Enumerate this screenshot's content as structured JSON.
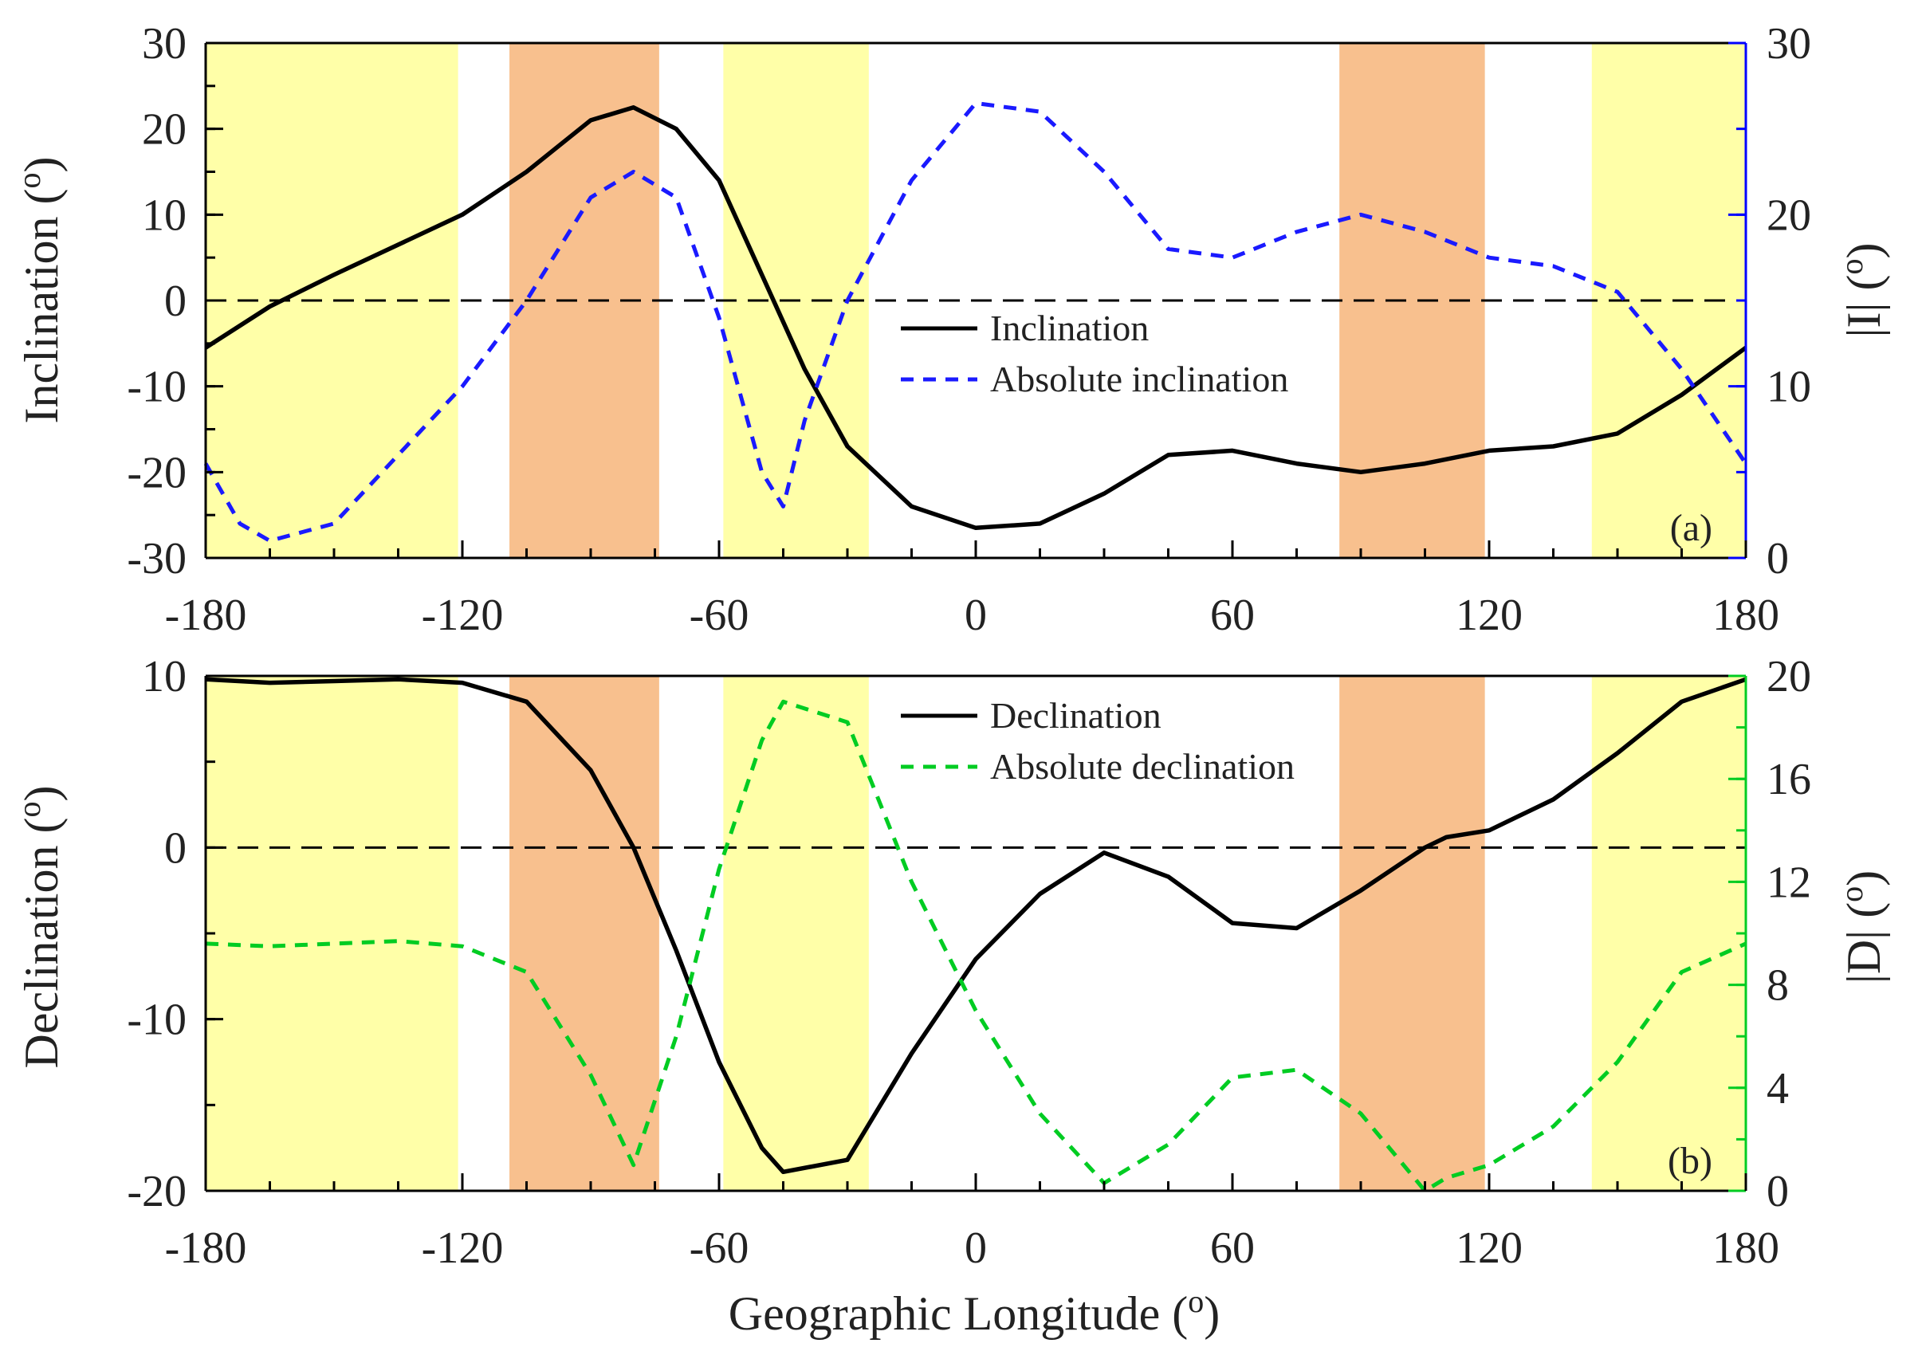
{
  "colors": {
    "inclination": "#000000",
    "absolute_inclination": "#1a1aff",
    "declination": "#000000",
    "absolute_declination": "#00cc22",
    "band_yellow": "#ffff99",
    "band_orange": "#f7b57a",
    "right_axis_top": "#0000ff",
    "right_axis_bottom": "#00cc22"
  },
  "shared": {
    "xlabel": "Geographic Longitude (o)",
    "xlabel_main": "Geographic Longitude (",
    "xlabel_sup": "o",
    "xlabel_close": ")",
    "xticks": [
      "-180",
      "-120",
      "-60",
      "0",
      "60",
      "120",
      "180"
    ],
    "x_values": [
      -180,
      -120,
      -60,
      0,
      60,
      120,
      180
    ],
    "xlim": [
      -180,
      180
    ]
  },
  "chart_data": [
    {
      "type": "line",
      "panel": "(a)",
      "title": "",
      "xlabel": "",
      "ylabel": "Inclination (o)",
      "ylabel_main": "Inclination (",
      "ylabel_sup": "o",
      "ylabel_close": ")",
      "ylim": [
        -30,
        30
      ],
      "yticks": [
        "30",
        "20",
        "10",
        "0",
        "-10",
        "-20",
        "-30"
      ],
      "ytick_values": [
        30,
        20,
        10,
        0,
        -10,
        -20,
        -30
      ],
      "y2label": "|I| (o)",
      "y2label_main": "|I| (",
      "y2label_sup": "o",
      "y2label_close": ")",
      "y2lim": [
        0,
        30
      ],
      "y2ticks": [
        "30",
        "20",
        "10",
        "0"
      ],
      "y2tick_values": [
        30,
        20,
        10,
        0
      ],
      "bands": [
        {
          "x0": -180,
          "x1": -121,
          "color": "yellow"
        },
        {
          "x0": -109,
          "x1": -74,
          "color": "orange"
        },
        {
          "x0": -59,
          "x1": -25,
          "color": "yellow"
        },
        {
          "x0": 85,
          "x1": 119,
          "color": "orange"
        },
        {
          "x0": 144,
          "x1": 180,
          "color": "yellow"
        }
      ],
      "legend": [
        "Inclination",
        "Absolute inclination"
      ],
      "series": [
        {
          "name": "Inclination",
          "axis": "left",
          "style": "solid",
          "x": [
            -180,
            -165,
            -150,
            -135,
            -120,
            -105,
            -90,
            -80,
            -70,
            -60,
            -50,
            -40,
            -30,
            -15,
            0,
            15,
            30,
            45,
            60,
            75,
            90,
            105,
            120,
            135,
            150,
            165,
            180
          ],
          "y": [
            -5.5,
            -0.7,
            3,
            6.5,
            10,
            15,
            21,
            22.5,
            20,
            14,
            3,
            -8,
            -17,
            -24,
            -26.5,
            -26,
            -22.5,
            -18,
            -17.5,
            -19,
            -20,
            -19,
            -17.5,
            -17,
            -15.5,
            -11,
            -5.5
          ]
        },
        {
          "name": "Absolute inclination",
          "axis": "right",
          "style": "dashed",
          "x": [
            -180,
            -172,
            -165,
            -150,
            -135,
            -120,
            -105,
            -90,
            -80,
            -70,
            -60,
            -50,
            -45,
            -40,
            -30,
            -15,
            0,
            15,
            30,
            45,
            60,
            75,
            90,
            105,
            120,
            135,
            150,
            165,
            180
          ],
          "y": [
            5.5,
            2,
            1,
            2,
            6,
            10,
            15,
            21,
            22.5,
            21,
            14,
            5,
            3,
            8,
            15,
            22,
            26.5,
            26,
            22.5,
            18,
            17.5,
            19,
            20,
            19,
            17.5,
            17,
            15.5,
            11,
            5.5
          ]
        }
      ]
    },
    {
      "type": "line",
      "panel": "(b)",
      "title": "",
      "xlabel": "Geographic Longitude (o)",
      "ylabel": "Declination (o)",
      "ylabel_main": "Declination (",
      "ylabel_sup": "o",
      "ylabel_close": ")",
      "ylim": [
        -20,
        10
      ],
      "yticks": [
        "10",
        "0",
        "-10",
        "-20"
      ],
      "ytick_values": [
        10,
        0,
        -10,
        -20
      ],
      "y2label": "|D| (o)",
      "y2label_main": "|D| (",
      "y2label_sup": "o",
      "y2label_close": ")",
      "y2lim": [
        0,
        20
      ],
      "y2ticks": [
        "20",
        "16",
        "12",
        "8",
        "4",
        "0"
      ],
      "y2tick_values": [
        20,
        16,
        12,
        8,
        4,
        0
      ],
      "bands": [
        {
          "x0": -180,
          "x1": -121,
          "color": "yellow"
        },
        {
          "x0": -109,
          "x1": -74,
          "color": "orange"
        },
        {
          "x0": -59,
          "x1": -25,
          "color": "yellow"
        },
        {
          "x0": 85,
          "x1": 119,
          "color": "orange"
        },
        {
          "x0": 144,
          "x1": 180,
          "color": "yellow"
        }
      ],
      "legend": [
        "Declination",
        "Absolute declination"
      ],
      "series": [
        {
          "name": "Declination",
          "axis": "left",
          "style": "solid",
          "x": [
            -180,
            -165,
            -150,
            -135,
            -120,
            -105,
            -90,
            -80,
            -70,
            -60,
            -50,
            -45,
            -30,
            -15,
            0,
            15,
            30,
            45,
            60,
            75,
            90,
            105,
            110,
            120,
            135,
            150,
            165,
            180
          ],
          "y": [
            9.8,
            9.6,
            9.7,
            9.8,
            9.6,
            8.5,
            4.5,
            0,
            -6,
            -12.5,
            -17.5,
            -18.9,
            -18.2,
            -12,
            -6.5,
            -2.7,
            -0.3,
            -1.7,
            -4.4,
            -4.7,
            -2.5,
            0,
            0.6,
            1,
            2.8,
            5.5,
            8.5,
            9.8
          ]
        },
        {
          "name": "Absolute declination",
          "axis": "right",
          "style": "dashed",
          "x": [
            -180,
            -165,
            -150,
            -135,
            -120,
            -105,
            -90,
            -80,
            -70,
            -60,
            -50,
            -45,
            -30,
            -15,
            0,
            15,
            30,
            45,
            60,
            75,
            90,
            105,
            110,
            120,
            135,
            150,
            165,
            180
          ],
          "y": [
            9.6,
            9.5,
            9.6,
            9.7,
            9.5,
            8.5,
            4.5,
            1,
            6,
            12.5,
            17.5,
            19,
            18.2,
            12,
            7,
            3,
            0.3,
            1.8,
            4.4,
            4.7,
            3,
            0,
            0.5,
            1,
            2.5,
            5,
            8.5,
            9.6
          ]
        }
      ]
    }
  ]
}
